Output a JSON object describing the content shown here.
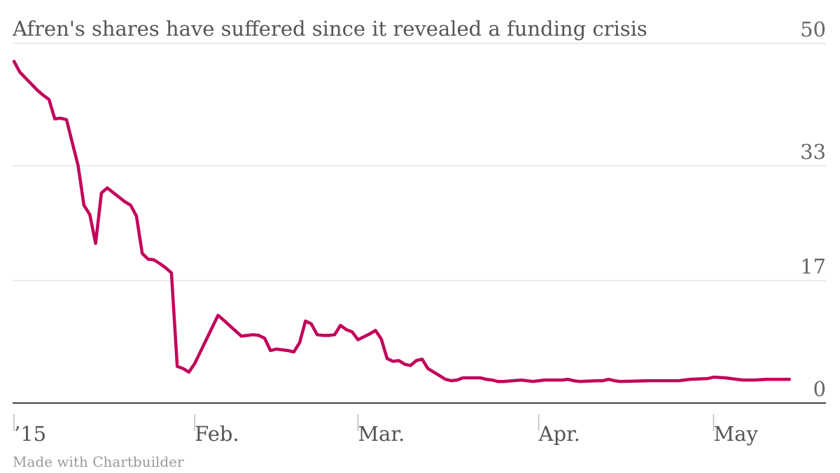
{
  "chart_data": {
    "type": "line",
    "title": "Afren's shares have suffered since it revealed a funding crisis",
    "credit": "Made with Chartbuilder",
    "ylim": [
      0,
      50
    ],
    "xlim": [
      "2015-01-01",
      "2015-05-15"
    ],
    "grid": true,
    "y_ticks": [
      {
        "value": 50,
        "label": "50"
      },
      {
        "value": 33,
        "label": "33"
      },
      {
        "value": 17,
        "label": "17"
      },
      {
        "value": 0,
        "label": "0"
      }
    ],
    "x_ticks": [
      {
        "date": "2015-01-01",
        "label": "’15"
      },
      {
        "date": "2015-02-01",
        "label": "Feb."
      },
      {
        "date": "2015-03-01",
        "label": "Mar."
      },
      {
        "date": "2015-04-01",
        "label": "Apr."
      },
      {
        "date": "2015-05-01",
        "label": "May"
      }
    ],
    "colors": {
      "line": "#c2005a",
      "grid": "#e4e4e4",
      "axis": "#444444",
      "tick": "#bbbbbb"
    },
    "series": [
      {
        "points": [
          [
            "2015-01-01",
            47.5
          ],
          [
            "2015-01-02",
            46.0
          ],
          [
            "2015-01-05",
            43.5
          ],
          [
            "2015-01-06",
            42.8
          ],
          [
            "2015-01-07",
            42.2
          ],
          [
            "2015-01-08",
            39.5
          ],
          [
            "2015-01-09",
            39.6
          ],
          [
            "2015-01-10",
            39.4
          ],
          [
            "2015-01-12",
            33.0
          ],
          [
            "2015-01-13",
            27.5
          ],
          [
            "2015-01-14",
            26.2
          ],
          [
            "2015-01-15",
            22.2
          ],
          [
            "2015-01-16",
            29.2
          ],
          [
            "2015-01-17",
            29.9
          ],
          [
            "2015-01-20",
            28.0
          ],
          [
            "2015-01-21",
            27.5
          ],
          [
            "2015-01-22",
            26.0
          ],
          [
            "2015-01-23",
            20.8
          ],
          [
            "2015-01-24",
            20.0
          ],
          [
            "2015-01-25",
            19.9
          ],
          [
            "2015-01-26",
            19.4
          ],
          [
            "2015-01-27",
            18.8
          ],
          [
            "2015-01-28",
            18.1
          ],
          [
            "2015-01-29",
            5.1
          ],
          [
            "2015-01-30",
            4.8
          ],
          [
            "2015-01-31",
            4.3
          ],
          [
            "2015-02-01",
            5.5
          ],
          [
            "2015-02-05",
            12.2
          ],
          [
            "2015-02-06",
            11.5
          ],
          [
            "2015-02-09",
            9.3
          ],
          [
            "2015-02-10",
            9.4
          ],
          [
            "2015-02-11",
            9.5
          ],
          [
            "2015-02-12",
            9.4
          ],
          [
            "2015-02-13",
            9.0
          ],
          [
            "2015-02-14",
            7.3
          ],
          [
            "2015-02-15",
            7.5
          ],
          [
            "2015-02-17",
            7.3
          ],
          [
            "2015-02-18",
            7.1
          ],
          [
            "2015-02-19",
            8.4
          ],
          [
            "2015-02-20",
            11.4
          ],
          [
            "2015-02-21",
            11.0
          ],
          [
            "2015-02-22",
            9.5
          ],
          [
            "2015-02-23",
            9.4
          ],
          [
            "2015-02-24",
            9.4
          ],
          [
            "2015-02-25",
            9.5
          ],
          [
            "2015-02-26",
            10.8
          ],
          [
            "2015-02-27",
            10.2
          ],
          [
            "2015-02-28",
            9.9
          ],
          [
            "2015-03-01",
            8.8
          ],
          [
            "2015-03-02",
            9.2
          ],
          [
            "2015-03-03",
            9.6
          ],
          [
            "2015-03-04",
            10.1
          ],
          [
            "2015-03-05",
            8.9
          ],
          [
            "2015-03-06",
            6.2
          ],
          [
            "2015-03-07",
            5.8
          ],
          [
            "2015-03-08",
            5.9
          ],
          [
            "2015-03-09",
            5.4
          ],
          [
            "2015-03-10",
            5.2
          ],
          [
            "2015-03-11",
            5.9
          ],
          [
            "2015-03-12",
            6.1
          ],
          [
            "2015-03-13",
            4.8
          ],
          [
            "2015-03-14",
            4.3
          ],
          [
            "2015-03-15",
            3.8
          ],
          [
            "2015-03-16",
            3.3
          ],
          [
            "2015-03-17",
            3.1
          ],
          [
            "2015-03-18",
            3.2
          ],
          [
            "2015-03-19",
            3.5
          ],
          [
            "2015-03-22",
            3.5
          ],
          [
            "2015-03-23",
            3.3
          ],
          [
            "2015-03-24",
            3.2
          ],
          [
            "2015-03-25",
            3.0
          ],
          [
            "2015-03-26",
            3.0
          ],
          [
            "2015-03-29",
            3.2
          ],
          [
            "2015-03-30",
            3.1
          ],
          [
            "2015-03-31",
            3.0
          ],
          [
            "2015-04-02",
            3.2
          ],
          [
            "2015-04-05",
            3.2
          ],
          [
            "2015-04-06",
            3.3
          ],
          [
            "2015-04-07",
            3.1
          ],
          [
            "2015-04-08",
            3.0
          ],
          [
            "2015-04-11",
            3.1
          ],
          [
            "2015-04-12",
            3.1
          ],
          [
            "2015-04-13",
            3.3
          ],
          [
            "2015-04-14",
            3.1
          ],
          [
            "2015-04-15",
            3.0
          ],
          [
            "2015-04-20",
            3.1
          ],
          [
            "2015-04-25",
            3.1
          ],
          [
            "2015-04-26",
            3.2
          ],
          [
            "2015-04-27",
            3.3
          ],
          [
            "2015-04-30",
            3.4
          ],
          [
            "2015-05-01",
            3.6
          ],
          [
            "2015-05-03",
            3.5
          ],
          [
            "2015-05-05",
            3.3
          ],
          [
            "2015-05-06",
            3.2
          ],
          [
            "2015-05-07",
            3.2
          ],
          [
            "2015-05-08",
            3.2
          ],
          [
            "2015-05-10",
            3.3
          ],
          [
            "2015-05-14",
            3.3
          ]
        ]
      }
    ]
  }
}
